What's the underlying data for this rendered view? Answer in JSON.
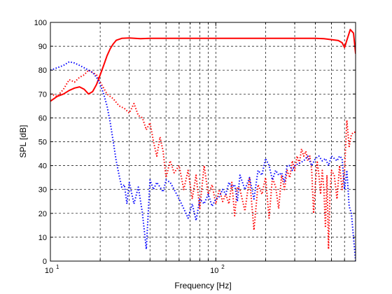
{
  "chart_data": {
    "type": "line",
    "xlabel": "Frequency [Hz]",
    "ylabel": "SPL [dB]",
    "xscale": "log",
    "xlim": [
      10,
      700
    ],
    "ylim": [
      0,
      100
    ],
    "grid": true,
    "y_ticks": [
      "0",
      "10",
      "20",
      "30",
      "40",
      "50",
      "60",
      "70",
      "80",
      "90",
      "100"
    ],
    "x_ticks": [
      {
        "base": "10",
        "exp": "1"
      },
      {
        "base": "10",
        "exp": "2"
      }
    ],
    "series": [
      {
        "style": "solid",
        "color": "#ff0000",
        "x": [
          10,
          11,
          12,
          13,
          14,
          15,
          16,
          17,
          18,
          19,
          20,
          21,
          22,
          23,
          24,
          25,
          27,
          30,
          35,
          40,
          50,
          60,
          80,
          100,
          150,
          200,
          300,
          400,
          450,
          500,
          550,
          580,
          600,
          620,
          650,
          680,
          700
        ],
        "y": [
          67,
          69,
          70,
          71.5,
          72.5,
          73,
          72,
          70,
          71,
          74,
          78,
          82,
          86,
          89,
          91,
          92.5,
          93.3,
          93.5,
          93.2,
          93.3,
          93.3,
          93.3,
          93.3,
          93.3,
          93.3,
          93.3,
          93.3,
          93.3,
          93.2,
          92.8,
          92.4,
          91.5,
          89.5,
          92.5,
          97,
          95.5,
          87
        ]
      },
      {
        "style": "dotted",
        "color": "#ff0000",
        "x": [
          10,
          11,
          12,
          13,
          14,
          15,
          16,
          17,
          18,
          19,
          20,
          22,
          24,
          26,
          28,
          30,
          32,
          34,
          36,
          38,
          40,
          42,
          44,
          46,
          48,
          50,
          53,
          56,
          60,
          64,
          68,
          72,
          76,
          80,
          85,
          90,
          95,
          100,
          105,
          110,
          115,
          120,
          125,
          130,
          135,
          140,
          150,
          160,
          170,
          180,
          190,
          200,
          210,
          220,
          230,
          240,
          250,
          260,
          270,
          280,
          290,
          300,
          310,
          320,
          330,
          340,
          350,
          360,
          370,
          380,
          390,
          400,
          410,
          420,
          430,
          440,
          450,
          460,
          470,
          480,
          490,
          500,
          520,
          540,
          560,
          580,
          600,
          620,
          640,
          660,
          680,
          700
        ],
        "y": [
          70,
          69,
          72,
          76,
          75,
          77,
          78,
          80,
          79,
          78,
          75,
          70,
          68,
          65,
          64,
          62,
          66,
          61,
          60,
          55,
          58,
          50,
          44,
          52,
          46,
          35,
          42,
          37,
          40,
          30,
          38,
          26,
          36,
          22,
          40,
          28,
          32,
          24,
          30,
          25,
          28,
          24,
          33,
          19,
          31,
          30,
          21,
          35,
          13,
          32,
          28,
          35,
          18,
          35,
          31,
          22,
          36,
          30,
          38,
          35,
          42,
          38,
          44,
          41,
          47,
          44,
          46,
          42,
          44,
          38,
          20,
          32,
          42,
          36,
          28,
          38,
          30,
          14,
          36,
          5,
          28,
          38,
          36,
          26,
          40,
          30,
          38,
          59,
          48,
          53,
          54,
          54
        ]
      },
      {
        "style": "dotted",
        "color": "#0000ff",
        "x": [
          10,
          11,
          12,
          13,
          14,
          15,
          16,
          17,
          18,
          19,
          20,
          21,
          22,
          23,
          24,
          25,
          26,
          27,
          28,
          29,
          30,
          32,
          34,
          36,
          38,
          40,
          42,
          44,
          46,
          48,
          50,
          53,
          56,
          60,
          64,
          68,
          72,
          76,
          80,
          85,
          90,
          95,
          100,
          105,
          110,
          115,
          120,
          125,
          130,
          135,
          140,
          150,
          160,
          170,
          180,
          190,
          200,
          210,
          220,
          230,
          240,
          250,
          260,
          270,
          280,
          290,
          300,
          320,
          340,
          360,
          380,
          400,
          420,
          440,
          460,
          480,
          500,
          520,
          540,
          560,
          580,
          600,
          620,
          640,
          660,
          680,
          700
        ],
        "y": [
          80,
          81,
          82,
          83.5,
          83,
          82,
          81,
          80,
          79,
          77,
          74,
          70,
          65,
          58,
          50,
          42,
          36,
          31,
          32,
          24,
          33,
          24,
          31,
          20,
          5,
          34,
          30,
          33,
          31,
          29,
          34,
          33,
          30,
          26,
          22,
          18,
          24,
          17,
          26,
          24,
          28,
          23,
          26,
          27,
          30,
          28,
          33,
          31,
          32,
          25,
          36,
          30,
          35,
          26,
          38,
          36,
          43,
          40,
          34,
          38,
          36,
          37,
          33,
          40,
          40,
          38,
          40,
          41,
          42,
          44,
          40,
          43,
          44,
          42,
          43,
          40,
          44,
          43,
          42,
          44,
          43,
          30,
          38,
          23,
          20,
          10,
          0
        ]
      }
    ]
  }
}
